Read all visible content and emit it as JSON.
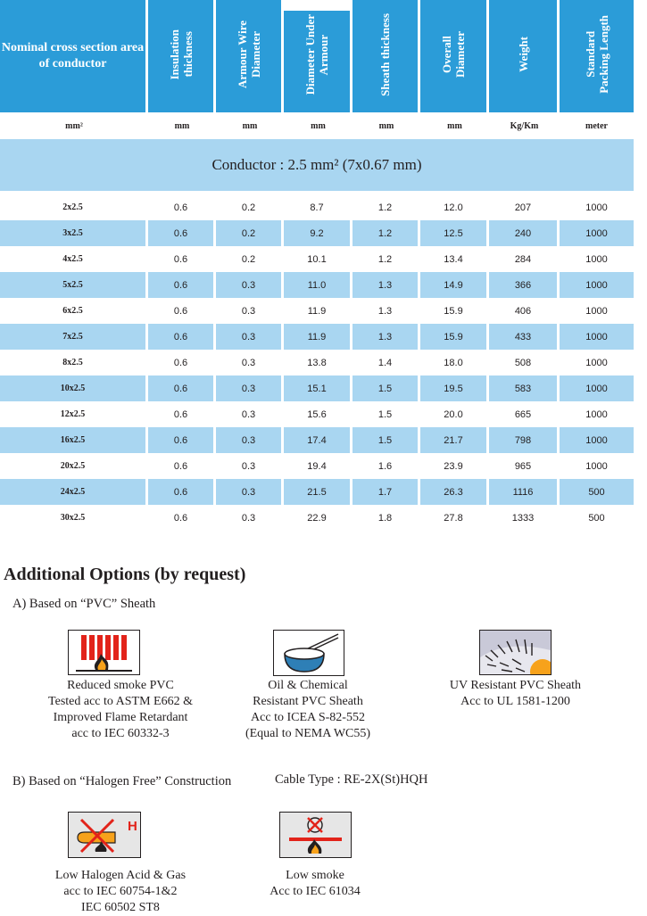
{
  "table": {
    "headers": [
      "Nominal cross section area of conductor",
      "Insulation thickness",
      "Armour Wire Diameter",
      "Diameter Under Armour",
      "Sheath thickness",
      "Overall Diameter",
      "Weight",
      "Standard Packing Length"
    ],
    "header_lines": [
      [
        "Insulation",
        "thickness"
      ],
      [
        "Armour Wire",
        "Diameter"
      ],
      [
        "Diameter Under",
        "Armour"
      ],
      [
        "Sheath thickness"
      ],
      [
        "Overall",
        "Diameter"
      ],
      [
        "Weight"
      ],
      [
        "Standard",
        "Packing Length"
      ]
    ],
    "units": [
      "mm²",
      "mm",
      "mm",
      "mm",
      "mm",
      "mm",
      "Kg/Km",
      "meter"
    ],
    "conductor_label": "Conductor : 2.5 mm² (7x0.67 mm)",
    "rows": [
      [
        "2x2.5",
        "0.6",
        "0.2",
        "8.7",
        "1.2",
        "12.0",
        "207",
        "1000"
      ],
      [
        "3x2.5",
        "0.6",
        "0.2",
        "9.2",
        "1.2",
        "12.5",
        "240",
        "1000"
      ],
      [
        "4x2.5",
        "0.6",
        "0.2",
        "10.1",
        "1.2",
        "13.4",
        "284",
        "1000"
      ],
      [
        "5x2.5",
        "0.6",
        "0.3",
        "11.0",
        "1.3",
        "14.9",
        "366",
        "1000"
      ],
      [
        "6x2.5",
        "0.6",
        "0.3",
        "11.9",
        "1.3",
        "15.9",
        "406",
        "1000"
      ],
      [
        "7x2.5",
        "0.6",
        "0.3",
        "11.9",
        "1.3",
        "15.9",
        "433",
        "1000"
      ],
      [
        "8x2.5",
        "0.6",
        "0.3",
        "13.8",
        "1.4",
        "18.0",
        "508",
        "1000"
      ],
      [
        "10x2.5",
        "0.6",
        "0.3",
        "15.1",
        "1.5",
        "19.5",
        "583",
        "1000"
      ],
      [
        "12x2.5",
        "0.6",
        "0.3",
        "15.6",
        "1.5",
        "20.0",
        "665",
        "1000"
      ],
      [
        "16x2.5",
        "0.6",
        "0.3",
        "17.4",
        "1.5",
        "21.7",
        "798",
        "1000"
      ],
      [
        "20x2.5",
        "0.6",
        "0.3",
        "19.4",
        "1.6",
        "23.9",
        "965",
        "1000"
      ],
      [
        "24x2.5",
        "0.6",
        "0.3",
        "21.5",
        "1.7",
        "26.3",
        "1116",
        "500"
      ],
      [
        "30x2.5",
        "0.6",
        "0.3",
        "22.9",
        "1.8",
        "27.8",
        "1333",
        "500"
      ]
    ]
  },
  "options": {
    "heading": "Additional Options (by request)",
    "pvc": {
      "label": "A) Based on “PVC” Sheath",
      "items": [
        {
          "icon": "reduced-smoke-fire-icon",
          "lines": [
            "Reduced smoke PVC",
            "Tested acc to ASTM E662 &",
            "Improved Flame Retardant",
            "acc to IEC 60332-3"
          ]
        },
        {
          "icon": "oil-chemical-flask-icon",
          "lines": [
            "Oil & Chemical",
            "Resistant PVC Sheath",
            "Acc to ICEA S-82-552",
            "(Equal to NEMA WC55)"
          ]
        },
        {
          "icon": "uv-sun-icon",
          "lines": [
            "UV Resistant PVC Sheath",
            "Acc to UL 1581-1200"
          ]
        }
      ]
    },
    "halogen": {
      "label": "B) Based on “Halogen Free” Construction",
      "cable_type": "Cable Type : RE-2X(St)HQH",
      "items": [
        {
          "icon": "low-halogen-icon",
          "icon_letter": "H",
          "lines": [
            "Low Halogen Acid & Gas",
            "acc to IEC 60754-1&2",
            "IEC 60502 ST8"
          ]
        },
        {
          "icon": "low-smoke-icon",
          "lines": [
            "Low smoke",
            "Acc to IEC 61034"
          ]
        }
      ]
    }
  },
  "colors": {
    "header_blue": "#2b9cd8",
    "row_shade": "#a9d6f1",
    "icon_red": "#e2231a",
    "icon_water": "#2e7fb6"
  }
}
